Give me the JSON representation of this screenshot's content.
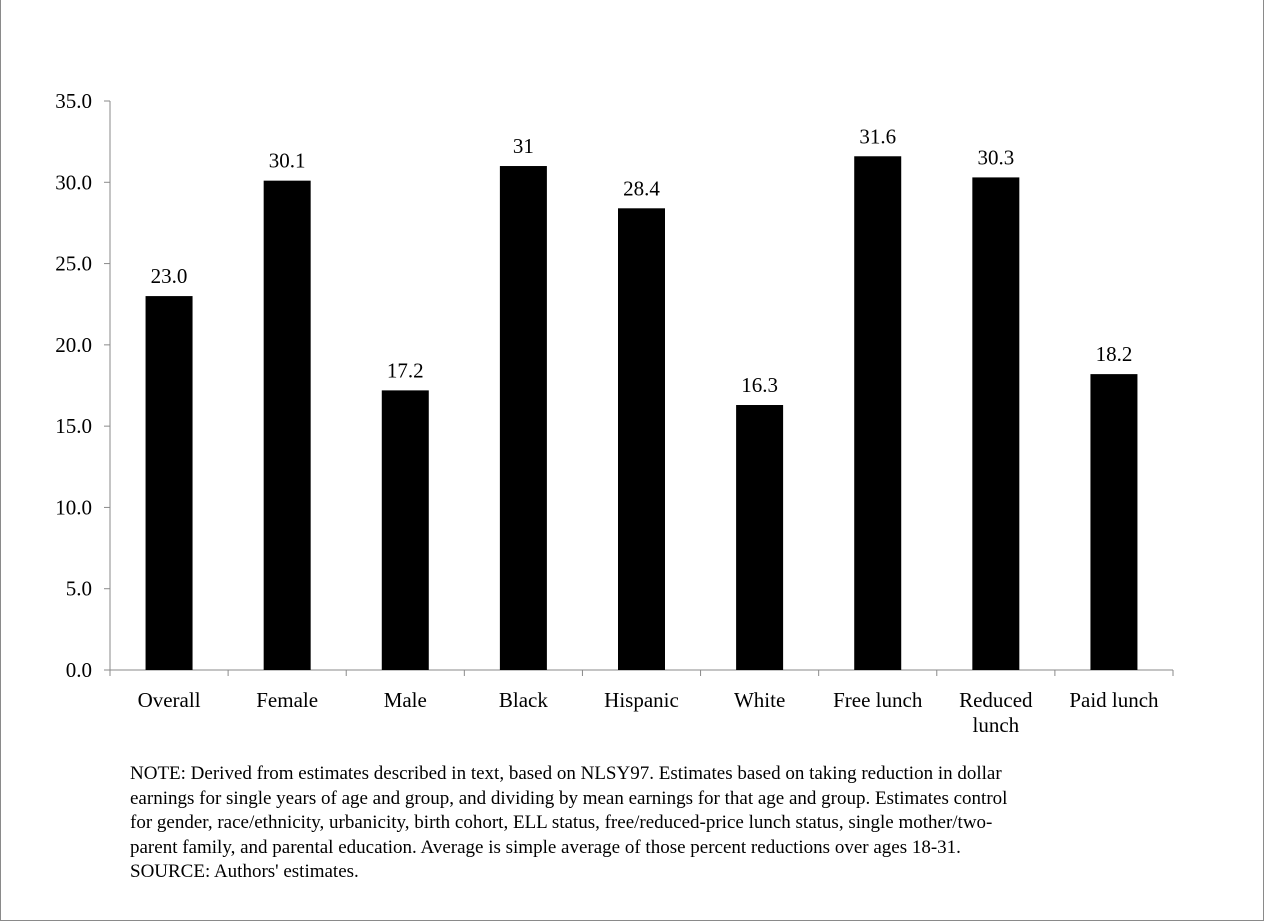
{
  "chart_data": {
    "type": "bar",
    "categories": [
      "Overall",
      "Female",
      "Male",
      "Black",
      "Hispanic",
      "White",
      "Free lunch",
      "Reduced lunch",
      "Paid lunch"
    ],
    "category_lines": [
      [
        "Overall"
      ],
      [
        "Female"
      ],
      [
        "Male"
      ],
      [
        "Black"
      ],
      [
        "Hispanic"
      ],
      [
        "White"
      ],
      [
        "Free lunch"
      ],
      [
        "Reduced",
        "lunch"
      ],
      [
        "Paid lunch"
      ]
    ],
    "values": [
      23.0,
      30.1,
      17.2,
      31.0,
      28.4,
      16.3,
      31.6,
      30.3,
      18.2
    ],
    "value_labels": [
      "23.0",
      "30.1",
      "17.2",
      "31",
      "28.4",
      "16.3",
      "31.6",
      "30.3",
      "18.2"
    ],
    "yticks": [
      0,
      5,
      10,
      15,
      20,
      25,
      30,
      35
    ],
    "ytick_labels": [
      "0.0",
      "5.0",
      "10.0",
      "15.0",
      "20.0",
      "25.0",
      "30.0",
      "35.0"
    ],
    "ylim": [
      0,
      35
    ],
    "title": "",
    "xlabel": "",
    "ylabel": "",
    "grid": false,
    "bar_color": "#000000"
  },
  "note": {
    "lines": [
      "NOTE:  Derived from estimates described in text, based on NLSY97.  Estimates based on taking reduction in dollar",
      "earnings for single years of age and group, and dividing by mean earnings for that age and group. Estimates control",
      "for gender, race/ethnicity, urbanicity, birth cohort, ELL status, free/reduced-price lunch status, single mother/two-",
      "parent family, and parental education. Average is simple average of those percent reductions over ages 18-31."
    ],
    "source": "SOURCE:  Authors' estimates."
  }
}
